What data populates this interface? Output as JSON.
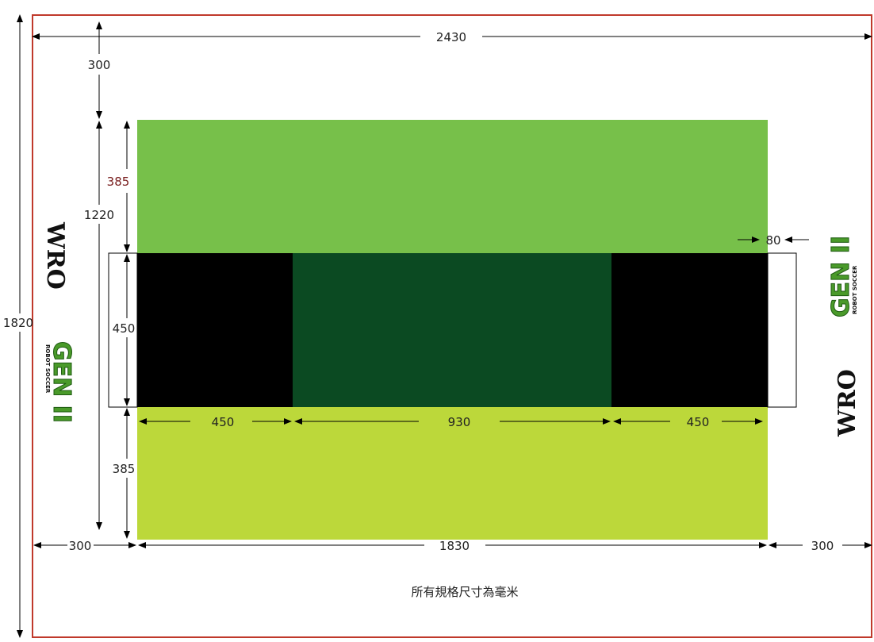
{
  "dimensions": {
    "total_width": "2430",
    "total_height": "1820",
    "top_margin": "300",
    "top_zone": "385",
    "inner_height": "1220",
    "goal_height": "450",
    "goal_depth": "80",
    "left_black_width": "450",
    "center_width": "930",
    "right_black_width": "450",
    "bottom_zone": "385",
    "left_margin": "300",
    "field_width": "1830",
    "right_margin": "300"
  },
  "caption": "所有規格尺寸為毫米",
  "logos": {
    "wro": "WRO",
    "gen": "GEN II",
    "sub": "ROBOT SOCCER"
  },
  "colors": {
    "border": "#c0392b",
    "top_zone": "#77c04a",
    "middle_zone": "#0b4a22",
    "bottom_zone": "#bcd83a",
    "black_zone": "#000000"
  }
}
